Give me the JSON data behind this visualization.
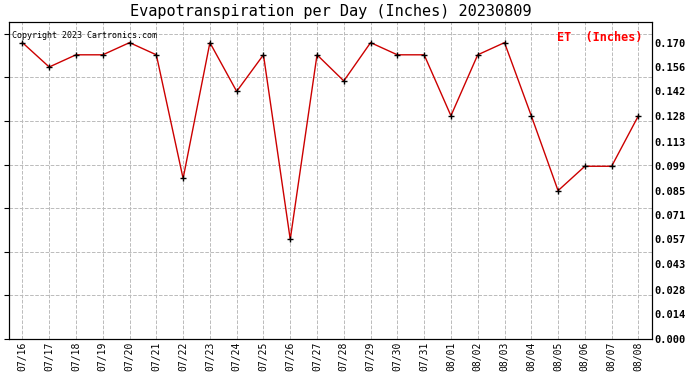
{
  "title": "Evapotranspiration per Day (Inches) 20230809",
  "copyright_text": "Copyright 2023 Cartronics.com",
  "legend_label": "ET  (Inches)",
  "dates": [
    "07/16",
    "07/17",
    "07/18",
    "07/19",
    "07/20",
    "07/21",
    "07/22",
    "07/23",
    "07/24",
    "07/25",
    "07/26",
    "07/27",
    "07/28",
    "07/29",
    "07/30",
    "07/31",
    "08/01",
    "08/02",
    "08/03",
    "08/04",
    "08/05",
    "08/06",
    "08/07",
    "08/08"
  ],
  "values": [
    0.17,
    0.156,
    0.163,
    0.163,
    0.17,
    0.163,
    0.092,
    0.17,
    0.142,
    0.163,
    0.057,
    0.163,
    0.148,
    0.17,
    0.163,
    0.163,
    0.128,
    0.163,
    0.17,
    0.128,
    0.085,
    0.099,
    0.099,
    0.128
  ],
  "line_color": "#cc0000",
  "marker_color": "#000000",
  "background_color": "#ffffff",
  "grid_color": "#bbbbbb",
  "title_fontsize": 11,
  "ylim_min": 0.0,
  "ylim_max": 0.182,
  "yticks": [
    0.0,
    0.014,
    0.028,
    0.043,
    0.057,
    0.071,
    0.085,
    0.099,
    0.113,
    0.128,
    0.142,
    0.156,
    0.17
  ]
}
